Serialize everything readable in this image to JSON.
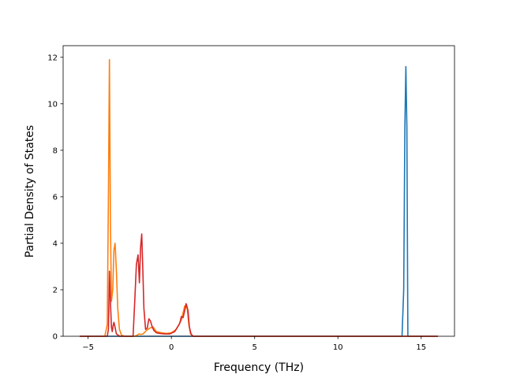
{
  "chart_data": {
    "type": "line",
    "title": "",
    "xlabel": "Frequency (THz)",
    "ylabel": "Partial Density of States",
    "xlim": [
      -6.5,
      17.0
    ],
    "ylim": [
      0,
      12.5
    ],
    "xticks": [
      -5,
      0,
      5,
      10,
      15
    ],
    "xtick_labels": [
      "−5",
      "0",
      "5",
      "10",
      "15"
    ],
    "yticks": [
      0,
      2,
      4,
      6,
      8,
      10,
      12
    ],
    "ytick_labels": [
      "0",
      "2",
      "4",
      "6",
      "8",
      "10",
      "12"
    ],
    "grid": false,
    "legend": false,
    "series": [
      {
        "color": "#1f77b4",
        "x": [
          -5.5,
          13.85,
          13.95,
          14.02,
          14.08,
          14.14,
          14.2,
          16.0
        ],
        "y": [
          0,
          0,
          2.0,
          9.0,
          11.6,
          9.0,
          0,
          0
        ]
      },
      {
        "color": "#ff7f0e",
        "x": [
          -5.5,
          -4.0,
          -3.85,
          -3.78,
          -3.72,
          -3.66,
          -3.6,
          -3.52,
          -3.45,
          -3.38,
          -3.3,
          -3.22,
          -3.12,
          -3.0,
          -2.8,
          -2.2,
          -2.05,
          -1.95,
          -1.85,
          -1.7,
          -1.5,
          -1.3,
          -1.1,
          -0.9,
          -0.6,
          -0.3,
          0.0,
          0.3,
          0.6,
          0.8,
          0.95,
          1.05,
          1.15,
          1.3,
          16.0
        ],
        "y": [
          0,
          0,
          0.5,
          6.0,
          11.9,
          5.0,
          1.5,
          2.0,
          3.7,
          4.0,
          2.8,
          1.2,
          0.3,
          0.05,
          0,
          0,
          0.05,
          0.1,
          0.08,
          0.1,
          0.25,
          0.35,
          0.4,
          0.2,
          0.15,
          0.12,
          0.15,
          0.3,
          0.7,
          1.3,
          1.2,
          0.5,
          0.1,
          0,
          0
        ]
      },
      {
        "color": "#d62728",
        "x": [
          -5.5,
          -3.85,
          -3.78,
          -3.72,
          -3.66,
          -3.6,
          -3.55,
          -3.5,
          -3.45,
          -3.4,
          -3.3,
          -3.1,
          -2.3,
          -2.2,
          -2.1,
          -2.0,
          -1.92,
          -1.85,
          -1.78,
          -1.72,
          -1.65,
          -1.55,
          -1.45,
          -1.35,
          -1.25,
          -1.15,
          -1.05,
          -0.9,
          -0.7,
          -0.4,
          -0.1,
          0.2,
          0.5,
          0.6,
          0.7,
          0.8,
          0.88,
          0.93,
          1.0,
          1.08,
          1.18,
          1.3,
          16.0
        ],
        "y": [
          0,
          0,
          0.3,
          2.8,
          1.5,
          0.4,
          0.2,
          0.45,
          0.6,
          0.45,
          0.1,
          0,
          0,
          1.5,
          3.1,
          3.5,
          2.3,
          3.8,
          4.4,
          3.0,
          1.2,
          0.3,
          0.35,
          0.75,
          0.65,
          0.4,
          0.25,
          0.15,
          0.12,
          0.1,
          0.1,
          0.2,
          0.55,
          0.85,
          0.8,
          1.1,
          1.4,
          1.3,
          1.1,
          0.4,
          0.1,
          0,
          0
        ]
      }
    ]
  }
}
